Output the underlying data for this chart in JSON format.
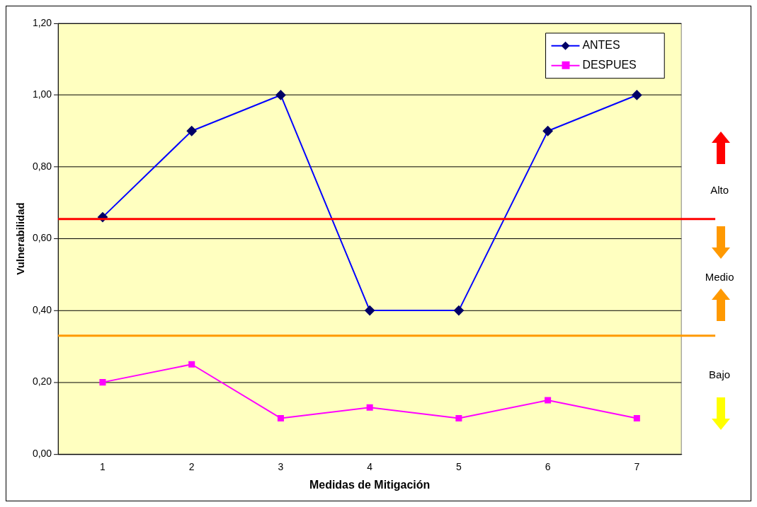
{
  "chart_data": {
    "type": "line",
    "xlabel": "Medidas de Mitigación",
    "ylabel": "Vulnerabilidad",
    "categories": [
      "1",
      "2",
      "3",
      "4",
      "5",
      "6",
      "7"
    ],
    "series": [
      {
        "name": "ANTES",
        "color": "#0000ff",
        "marker": "diamond",
        "values": [
          0.66,
          0.9,
          1.0,
          0.4,
          0.4,
          0.9,
          1.0
        ]
      },
      {
        "name": "DESPUES",
        "color": "#ff00ff",
        "marker": "square",
        "values": [
          0.2,
          0.25,
          0.1,
          0.13,
          0.1,
          0.15,
          0.1
        ]
      }
    ],
    "ylim": [
      0,
      1.2
    ],
    "yticks": [
      {
        "value": 0,
        "label": "0,00"
      },
      {
        "value": 0.2,
        "label": "0,20"
      },
      {
        "value": 0.4,
        "label": "0,40"
      },
      {
        "value": 0.6,
        "label": "0,60"
      },
      {
        "value": 0.8,
        "label": "0,80"
      },
      {
        "value": 1.0,
        "label": "1,00"
      },
      {
        "value": 1.2,
        "label": "1,20"
      }
    ],
    "ref_lines": [
      {
        "axis": "y",
        "value": 0.655,
        "color": "#ff0000"
      },
      {
        "axis": "y",
        "value": 0.33,
        "color": "#ff9900"
      }
    ],
    "annotations": [
      "Alto",
      "Medio",
      "Bajo"
    ],
    "grid": "y",
    "legend": "top right"
  }
}
